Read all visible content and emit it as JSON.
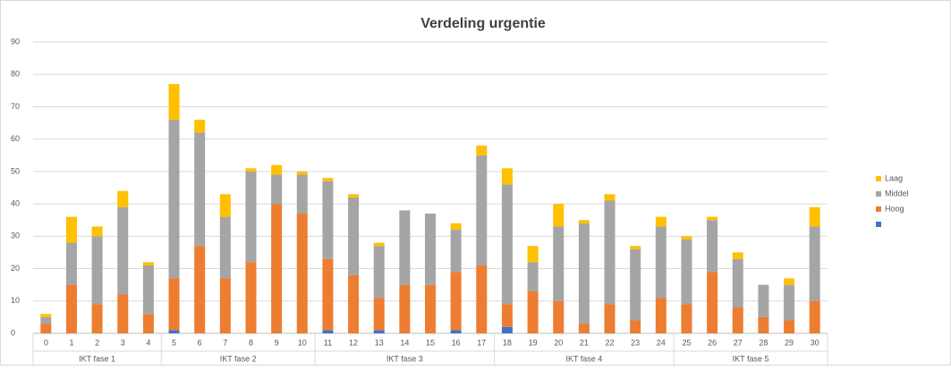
{
  "chart_data": {
    "type": "stacked_bar",
    "title": "Verdeling urgentie",
    "categories": [
      "0",
      "1",
      "2",
      "3",
      "4",
      "5",
      "6",
      "7",
      "8",
      "9",
      "10",
      "11",
      "12",
      "13",
      "14",
      "15",
      "16",
      "17",
      "18",
      "19",
      "20",
      "21",
      "22",
      "23",
      "24",
      "25",
      "26",
      "27",
      "28",
      "29",
      "30"
    ],
    "groups": [
      {
        "label": "IKT fase 1",
        "span": 5
      },
      {
        "label": "IKT fase 2",
        "span": 6
      },
      {
        "label": "IKT fase 3",
        "span": 7
      },
      {
        "label": "IKT fase 4",
        "span": 7
      },
      {
        "label": "IKT fase 5",
        "span": 6
      }
    ],
    "series": [
      {
        "name": null,
        "color": "#4472c4",
        "values": [
          0,
          0,
          0,
          0,
          0,
          1,
          0,
          0,
          0,
          0,
          0,
          1,
          0,
          1,
          0,
          0,
          1,
          0,
          2,
          0,
          0,
          0,
          0,
          0,
          0,
          0,
          0,
          0,
          0,
          0,
          0
        ]
      },
      {
        "name": "Hoog",
        "color": "#ed7d31",
        "values": [
          3,
          15,
          9,
          12,
          6,
          16,
          27,
          17,
          22,
          40,
          37,
          22,
          18,
          10,
          15,
          15,
          18,
          21,
          7,
          13,
          10,
          3,
          9,
          4,
          11,
          9,
          19,
          8,
          5,
          4,
          10
        ]
      },
      {
        "name": "Middel",
        "color": "#a5a5a5",
        "values": [
          2,
          13,
          21,
          27,
          15,
          49,
          35,
          19,
          28,
          9,
          12,
          24,
          24,
          16,
          23,
          22,
          13,
          34,
          37,
          9,
          23,
          31,
          32,
          22,
          22,
          20,
          16,
          15,
          10,
          11,
          23
        ]
      },
      {
        "name": "Laag",
        "color": "#ffc000",
        "values": [
          1,
          8,
          3,
          5,
          1,
          11,
          4,
          7,
          1,
          3,
          1,
          1,
          1,
          1,
          0,
          0,
          2,
          3,
          5,
          5,
          7,
          1,
          2,
          1,
          3,
          1,
          1,
          2,
          0,
          2,
          6
        ]
      }
    ],
    "ylim": [
      0,
      90
    ],
    "yticks": [
      0,
      10,
      20,
      30,
      40,
      50,
      60,
      70,
      80,
      90
    ],
    "grid": true,
    "legend": "right"
  }
}
